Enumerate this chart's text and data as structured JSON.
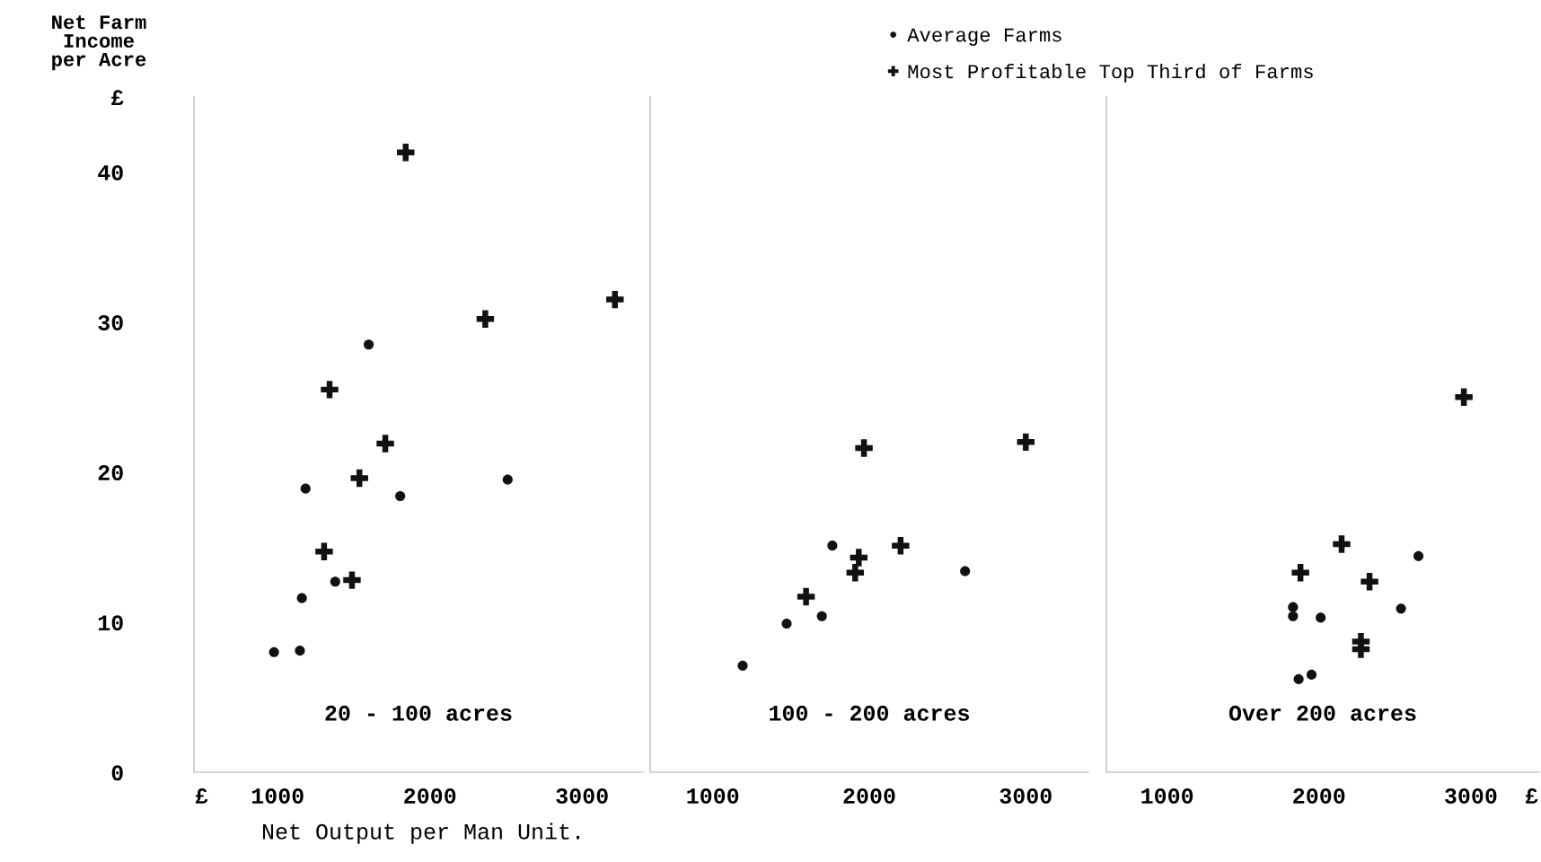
{
  "chart_data": [
    {
      "type": "scatter",
      "xlabel": "Net Output per Man Unit.",
      "ylabel": "Net Farm\nIncome\nper Acre",
      "annotations": [
        "20 - 100 acres"
      ],
      "xlim": [
        450,
        3400
      ],
      "xticks": [
        {
          "value": 500,
          "label": "£"
        },
        1000,
        2000,
        3000
      ],
      "ylim": [
        0,
        45
      ],
      "yticks": [
        0,
        10,
        20,
        30,
        40,
        {
          "value": 45,
          "label": "£"
        }
      ],
      "grid": false,
      "legend": false,
      "series": [
        {
          "marker": "circle",
          "color": "#111111",
          "x": [
            976,
            1146,
            1159,
            1183,
            1378,
            1598,
            1805,
            2511
          ],
          "values": [
            8.0,
            8.1,
            11.6,
            18.9,
            12.7,
            28.5,
            18.4,
            19.5
          ]
        },
        {
          "marker": "cross",
          "color": "#111111",
          "x": [
            1841,
            1341,
            1707,
            1537,
            1305,
            1488,
            2364,
            3216
          ],
          "values": [
            41.3,
            25.5,
            21.9,
            19.6,
            14.7,
            12.8,
            30.2,
            31.5
          ]
        }
      ]
    },
    {
      "type": "scatter",
      "annotations": [
        "100 - 200 acres"
      ],
      "xlim": [
        600,
        3400
      ],
      "xticks": [
        1000,
        2000,
        3000
      ],
      "ylim": [
        0,
        45
      ],
      "tick_labels": "x",
      "grid": false,
      "legend": "top right",
      "series": [
        {
          "name": "Average Farms",
          "marker": "circle",
          "color": "#111111",
          "x": [
            1191,
            1472,
            1697,
            1764,
            2612
          ],
          "values": [
            7.1,
            9.9,
            10.4,
            15.1,
            13.4
          ]
        },
        {
          "name": "Most Profitable Top Third of Farms",
          "marker": "cross",
          "color": "#111111",
          "x": [
            1966,
            3000,
            2200,
            1933,
            1910,
            1596
          ],
          "values": [
            21.6,
            22.0,
            15.1,
            14.3,
            13.3,
            11.7
          ]
        }
      ]
    },
    {
      "type": "scatter",
      "annotations": [
        "Over 200 acres"
      ],
      "xlim": [
        600,
        3450
      ],
      "xticks": [
        1000,
        2000,
        3000,
        {
          "value": 3400,
          "label": "£"
        }
      ],
      "ylim": [
        0,
        45
      ],
      "tick_labels": "x",
      "grid": false,
      "legend": false,
      "series": [
        {
          "marker": "circle",
          "color": "#111111",
          "x": [
            2655,
            2540,
            2011,
            1829,
            1829,
            1866,
            1951
          ],
          "values": [
            14.4,
            10.9,
            10.3,
            11.0,
            10.4,
            6.2,
            6.5
          ]
        },
        {
          "marker": "cross",
          "color": "#111111",
          "x": [
            2954,
            2149,
            1878,
            2333,
            2276,
            2276
          ],
          "values": [
            25.0,
            15.2,
            13.3,
            12.7,
            8.7,
            8.2
          ]
        }
      ]
    }
  ]
}
